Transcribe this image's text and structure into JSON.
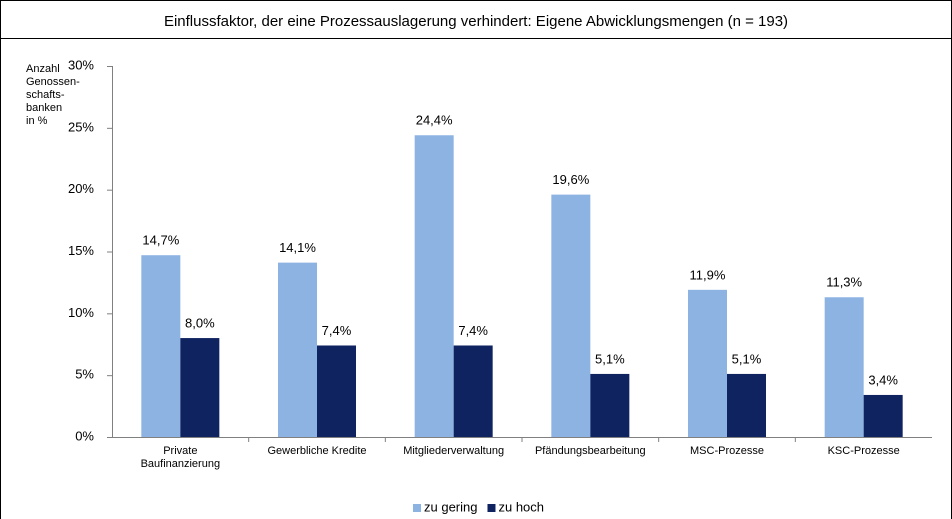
{
  "chart_data": {
    "type": "bar",
    "title": "Einflussfaktor, der eine Prozessauslagerung verhindert: Eigene Abwicklungsmengen (n = 193)",
    "y_label": "Anzahl\nGenossen-\nschafts-\nbanken\nin %",
    "categories": [
      "Private\nBaufinanzierung",
      "Gewerbliche Kredite",
      "Mitgliederverwaltung",
      "Pfändungsbearbeitung",
      "MSC-Prozesse",
      "KSC-Prozesse"
    ],
    "series": [
      {
        "name": "zu gering",
        "color": "#8db3e2",
        "values": [
          14.7,
          14.1,
          24.4,
          19.6,
          11.9,
          11.3
        ],
        "value_labels": [
          "14,7%",
          "14,1%",
          "24,4%",
          "19,6%",
          "11,9%",
          "11,3%"
        ]
      },
      {
        "name": "zu hoch",
        "color": "#0f2360",
        "values": [
          8.0,
          7.4,
          7.4,
          5.1,
          5.1,
          3.4
        ],
        "value_labels": [
          "8,0%",
          "7,4%",
          "7,4%",
          "5,1%",
          "5,1%",
          "3,4%"
        ]
      }
    ],
    "ylim": [
      0,
      30
    ],
    "yticks": [
      {
        "value": 0,
        "label": "0%"
      },
      {
        "value": 5,
        "label": "5%"
      },
      {
        "value": 10,
        "label": "10%"
      },
      {
        "value": 15,
        "label": "15%"
      },
      {
        "value": 20,
        "label": "20%"
      },
      {
        "value": 25,
        "label": "25%"
      },
      {
        "value": 30,
        "label": "30%"
      }
    ],
    "grid": false,
    "legend": "bottom"
  }
}
